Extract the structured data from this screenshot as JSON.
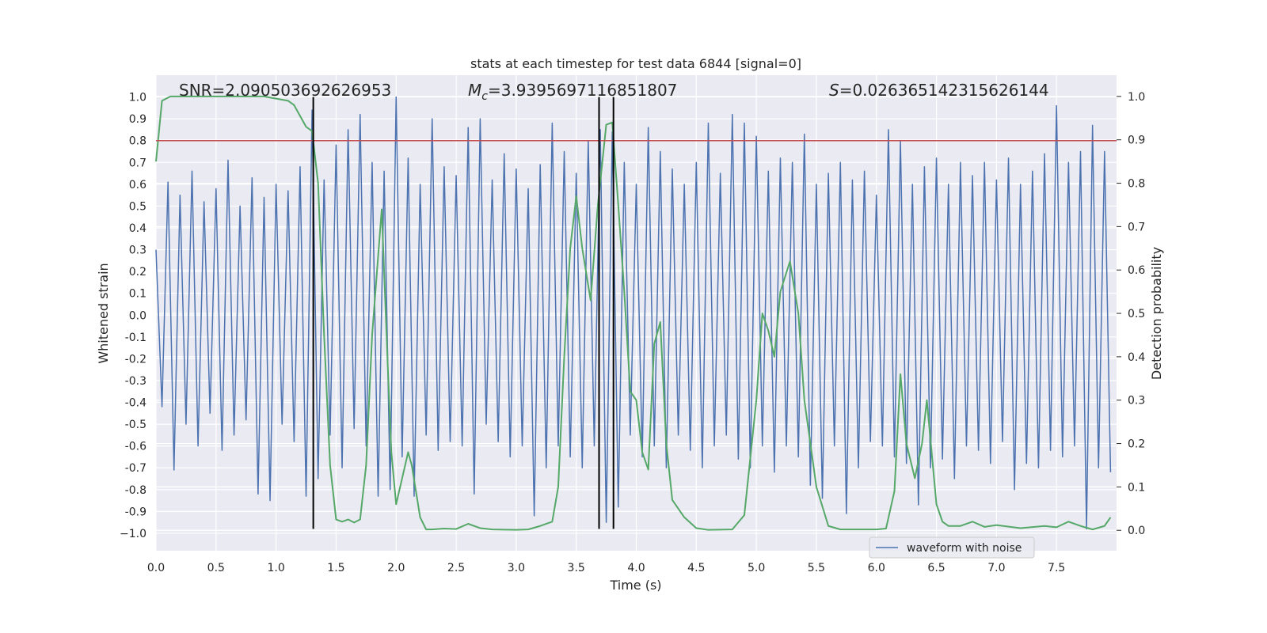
{
  "chart_data": {
    "type": "line",
    "title": "stats at each timestep for test data 6844 [signal=0]",
    "x_label": "Time (s)",
    "y_label": "Whitened strain",
    "y2_label": "Detection probability",
    "xlim": [
      0,
      8
    ],
    "ylim": [
      -1.08,
      1.1
    ],
    "y2lim": [
      -0.047,
      1.049
    ],
    "xticks": [
      {
        "value": 0,
        "label": "0.0"
      },
      0.5,
      {
        "value": 1,
        "label": "1.0"
      },
      1.5,
      {
        "value": 2,
        "label": "2.0"
      },
      2.5,
      {
        "value": 3,
        "label": "3.0"
      },
      3.5,
      {
        "value": 4,
        "label": "4.0"
      },
      4.5,
      {
        "value": 5,
        "label": "5.0"
      },
      5.5,
      {
        "value": 6,
        "label": "6.0"
      },
      6.5,
      {
        "value": 7,
        "label": "7.0"
      },
      7.5
    ],
    "yticks": [
      {
        "value": -1,
        "label": "−1.0"
      },
      -0.9,
      -0.8,
      -0.7,
      -0.6,
      -0.5,
      -0.4,
      -0.3,
      -0.2,
      -0.1,
      {
        "value": 0,
        "label": "0.0"
      },
      0.1,
      0.2,
      0.3,
      0.4,
      0.5,
      0.6,
      0.7,
      0.8,
      0.9,
      {
        "value": 1,
        "label": "1.0"
      }
    ],
    "y2ticks": [
      {
        "value": 0,
        "label": "0.0"
      },
      0.1,
      0.2,
      0.3,
      0.4,
      0.5,
      0.6,
      0.7,
      0.8,
      0.9,
      {
        "value": 1,
        "label": "1.0"
      }
    ],
    "grid": true,
    "legend": "lower right",
    "annotations": [
      {
        "text": "SNR=2.090503692626953"
      },
      {
        "symbol": "M",
        "sub": "c",
        "text": "=3.9395697116851807"
      },
      {
        "symbol": "S",
        "text": "=0.026365142315626144"
      }
    ],
    "hline": {
      "y": 0.8,
      "color": "#c44e52"
    },
    "vlines": {
      "x": [
        1.31,
        3.69,
        3.81
      ],
      "ymin": -0.98,
      "ymax": 1.0,
      "color": "#000000"
    },
    "series": [
      {
        "name": "waveform with noise",
        "color": "#4c72b0",
        "x": [
          0,
          0.05,
          0.1,
          0.15,
          0.2,
          0.25,
          0.3,
          0.35,
          0.4,
          0.45,
          0.5,
          0.55,
          0.6,
          0.65,
          0.7,
          0.75,
          0.8,
          0.85,
          0.9,
          0.95,
          1,
          1.05,
          1.1,
          1.15,
          1.2,
          1.25,
          1.3,
          1.35,
          1.4,
          1.45,
          1.5,
          1.55,
          1.6,
          1.65,
          1.7,
          1.75,
          1.8,
          1.85,
          1.9,
          1.95,
          2,
          2.05,
          2.1,
          2.15,
          2.2,
          2.25,
          2.3,
          2.35,
          2.4,
          2.45,
          2.5,
          2.55,
          2.6,
          2.65,
          2.7,
          2.75,
          2.8,
          2.85,
          2.9,
          2.95,
          3,
          3.05,
          3.1,
          3.15,
          3.2,
          3.25,
          3.3,
          3.35,
          3.4,
          3.45,
          3.5,
          3.55,
          3.6,
          3.65,
          3.7,
          3.75,
          3.8,
          3.85,
          3.9,
          3.95,
          4,
          4.05,
          4.1,
          4.15,
          4.2,
          4.25,
          4.3,
          4.35,
          4.4,
          4.45,
          4.5,
          4.55,
          4.6,
          4.65,
          4.7,
          4.75,
          4.8,
          4.85,
          4.9,
          4.95,
          5,
          5.05,
          5.1,
          5.15,
          5.2,
          5.25,
          5.3,
          5.35,
          5.4,
          5.45,
          5.5,
          5.55,
          5.6,
          5.65,
          5.7,
          5.75,
          5.8,
          5.85,
          5.9,
          5.95,
          6,
          6.05,
          6.1,
          6.15,
          6.2,
          6.25,
          6.3,
          6.35,
          6.4,
          6.45,
          6.5,
          6.55,
          6.6,
          6.65,
          6.7,
          6.75,
          6.8,
          6.85,
          6.9,
          6.95,
          7,
          7.05,
          7.1,
          7.15,
          7.2,
          7.25,
          7.3,
          7.35,
          7.4,
          7.45,
          7.5,
          7.55,
          7.6,
          7.65,
          7.7,
          7.75,
          7.8,
          7.85,
          7.9,
          7.95
        ],
        "values": [
          0.3,
          -0.42,
          0.61,
          -0.71,
          0.55,
          -0.5,
          0.66,
          -0.6,
          0.52,
          -0.45,
          0.58,
          -0.62,
          0.71,
          -0.55,
          0.5,
          -0.48,
          0.63,
          -0.82,
          0.54,
          -0.85,
          0.6,
          -0.5,
          0.57,
          -0.58,
          0.68,
          -0.83,
          0.94,
          -0.75,
          0.62,
          -0.55,
          0.78,
          -0.7,
          0.85,
          -0.52,
          0.92,
          -0.6,
          0.7,
          -0.83,
          0.66,
          -0.8,
          1.0,
          -0.65,
          0.72,
          -0.83,
          0.6,
          -0.55,
          0.9,
          -0.62,
          0.68,
          -0.58,
          0.64,
          -0.6,
          0.86,
          -0.82,
          0.9,
          -0.5,
          0.62,
          -0.58,
          0.74,
          -0.65,
          0.67,
          -0.6,
          0.58,
          -0.92,
          0.69,
          -0.7,
          0.88,
          -0.6,
          0.75,
          -0.65,
          0.65,
          -0.7,
          0.8,
          -0.6,
          0.85,
          -0.95,
          0.84,
          -0.88,
          0.7,
          -0.55,
          0.6,
          -0.65,
          0.86,
          -0.6,
          0.75,
          -0.7,
          0.67,
          -0.55,
          0.6,
          -0.62,
          0.7,
          -0.7,
          0.88,
          -0.6,
          0.65,
          -0.55,
          0.92,
          -0.66,
          0.88,
          -0.7,
          0.82,
          -0.6,
          0.66,
          -0.72,
          0.72,
          -0.6,
          0.7,
          -0.65,
          0.83,
          -0.78,
          0.6,
          -0.84,
          0.65,
          -0.6,
          0.7,
          -0.91,
          0.62,
          -0.7,
          0.66,
          -0.58,
          0.55,
          -0.6,
          0.85,
          -0.65,
          0.8,
          -0.68,
          0.6,
          -0.87,
          0.68,
          -0.7,
          0.72,
          -0.66,
          0.6,
          -0.75,
          0.7,
          -0.6,
          0.64,
          -0.62,
          0.7,
          -0.68,
          0.62,
          -0.58,
          0.72,
          -0.8,
          0.6,
          -0.68,
          0.66,
          -0.7,
          0.74,
          -0.62,
          0.96,
          -0.65,
          0.7,
          -0.6,
          0.75,
          -0.98,
          0.87,
          -0.7,
          0.75,
          -0.72
        ]
      },
      {
        "color": "#55a868",
        "axis": "y2",
        "x": [
          0,
          0.05,
          0.12,
          0.5,
          0.9,
          1.0,
          1.1,
          1.15,
          1.25,
          1.3,
          1.35,
          1.4,
          1.45,
          1.5,
          1.55,
          1.6,
          1.65,
          1.7,
          1.75,
          1.8,
          1.88,
          1.93,
          1.96,
          2.0,
          2.05,
          2.1,
          2.13,
          2.2,
          2.25,
          2.3,
          2.4,
          2.5,
          2.6,
          2.7,
          2.8,
          3.0,
          3.1,
          3.2,
          3.3,
          3.35,
          3.4,
          3.45,
          3.5,
          3.55,
          3.62,
          3.68,
          3.75,
          3.8,
          3.85,
          3.9,
          3.95,
          4.0,
          4.05,
          4.1,
          4.15,
          4.2,
          4.25,
          4.3,
          4.4,
          4.5,
          4.6,
          4.8,
          4.9,
          5.0,
          5.05,
          5.1,
          5.15,
          5.2,
          5.28,
          5.35,
          5.4,
          5.5,
          5.6,
          5.7,
          6.0,
          6.08,
          6.15,
          6.2,
          6.25,
          6.32,
          6.38,
          6.42,
          6.5,
          6.55,
          6.6,
          6.7,
          6.8,
          6.9,
          7.0,
          7.2,
          7.4,
          7.5,
          7.6,
          7.7,
          7.8,
          7.9,
          7.95
        ],
        "values": [
          0.85,
          0.99,
          1.0,
          1.0,
          1.0,
          0.995,
          0.99,
          0.98,
          0.93,
          0.92,
          0.8,
          0.45,
          0.15,
          0.025,
          0.02,
          0.025,
          0.018,
          0.025,
          0.15,
          0.45,
          0.74,
          0.38,
          0.18,
          0.06,
          0.12,
          0.18,
          0.15,
          0.03,
          0.002,
          0.002,
          0.004,
          0.003,
          0.015,
          0.005,
          0.002,
          0.001,
          0.002,
          0.01,
          0.02,
          0.1,
          0.4,
          0.65,
          0.77,
          0.65,
          0.53,
          0.75,
          0.935,
          0.94,
          0.75,
          0.55,
          0.32,
          0.3,
          0.18,
          0.14,
          0.43,
          0.48,
          0.2,
          0.07,
          0.03,
          0.005,
          0.001,
          0.002,
          0.035,
          0.3,
          0.5,
          0.46,
          0.4,
          0.55,
          0.62,
          0.5,
          0.3,
          0.1,
          0.01,
          0.002,
          0.002,
          0.004,
          0.09,
          0.36,
          0.2,
          0.12,
          0.2,
          0.3,
          0.06,
          0.02,
          0.01,
          0.01,
          0.02,
          0.008,
          0.012,
          0.005,
          0.01,
          0.007,
          0.02,
          0.01,
          0.002,
          0.01,
          0.03
        ]
      }
    ]
  }
}
